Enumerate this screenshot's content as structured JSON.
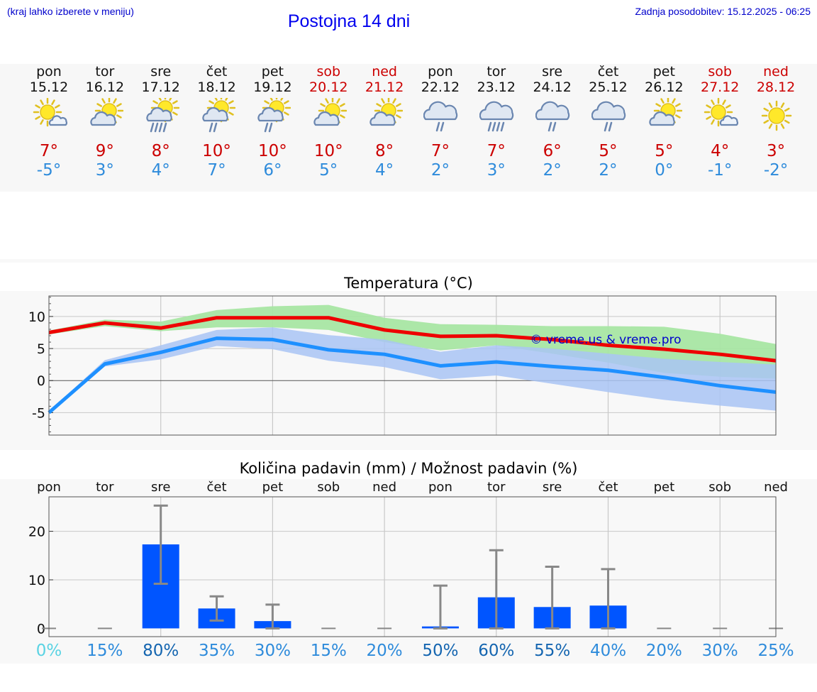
{
  "header": {
    "hint": "(kraj lahko izberete v meniju)",
    "title": "Postojna 14 dni",
    "updated": "Zadnja posodobitev: 15.12.2025 - 06:25"
  },
  "days": [
    {
      "name": "pon",
      "date": "15.12",
      "weekend": false,
      "icon": "sun-cloud-icon",
      "max": "7°",
      "min": "-5°"
    },
    {
      "name": "tor",
      "date": "16.12",
      "weekend": false,
      "icon": "cloud-sun-icon",
      "max": "9°",
      "min": "3°"
    },
    {
      "name": "sre",
      "date": "17.12",
      "weekend": false,
      "icon": "cloud-sun-rain-icon",
      "max": "8°",
      "min": "4°"
    },
    {
      "name": "čet",
      "date": "18.12",
      "weekend": false,
      "icon": "cloud-sun-light-rain-icon",
      "max": "10°",
      "min": "7°"
    },
    {
      "name": "pet",
      "date": "19.12",
      "weekend": false,
      "icon": "cloud-sun-light-rain-icon",
      "max": "10°",
      "min": "6°"
    },
    {
      "name": "sob",
      "date": "20.12",
      "weekend": true,
      "icon": "cloud-sun-icon",
      "max": "10°",
      "min": "5°"
    },
    {
      "name": "ned",
      "date": "21.12",
      "weekend": true,
      "icon": "cloud-sun-icon",
      "max": "8°",
      "min": "4°"
    },
    {
      "name": "pon",
      "date": "22.12",
      "weekend": false,
      "icon": "cloud-light-rain-icon",
      "max": "7°",
      "min": "2°"
    },
    {
      "name": "tor",
      "date": "23.12",
      "weekend": false,
      "icon": "cloud-rain-icon",
      "max": "7°",
      "min": "3°"
    },
    {
      "name": "sre",
      "date": "24.12",
      "weekend": false,
      "icon": "cloud-light-rain-icon",
      "max": "6°",
      "min": "2°"
    },
    {
      "name": "čet",
      "date": "25.12",
      "weekend": false,
      "icon": "cloud-light-rain-icon",
      "max": "5°",
      "min": "2°"
    },
    {
      "name": "pet",
      "date": "26.12",
      "weekend": false,
      "icon": "cloud-sun-icon",
      "max": "5°",
      "min": "0°"
    },
    {
      "name": "sob",
      "date": "27.12",
      "weekend": true,
      "icon": "sun-cloud-icon",
      "max": "4°",
      "min": "-1°"
    },
    {
      "name": "ned",
      "date": "28.12",
      "weekend": true,
      "icon": "sun-icon",
      "max": "3°",
      "min": "-2°"
    }
  ],
  "colors": {
    "max_line": "#ee0000",
    "min_line": "#1e90ff",
    "max_band": "#a8e6a3",
    "min_band": "#a9c4f5",
    "bar": "#0055ff",
    "error": "#888888",
    "watermark": "#0000cc"
  },
  "chart_data": [
    {
      "type": "line",
      "title": "Temperatura (°C)",
      "ylim": [
        -8.5,
        13.2
      ],
      "yticks": [
        -5,
        0,
        5,
        10
      ],
      "watermark": "© vreme.us & vreme.pro",
      "x": [
        0,
        1,
        2,
        3,
        4,
        5,
        6,
        7,
        8,
        9,
        10,
        11,
        12,
        13
      ],
      "series": [
        {
          "name": "max",
          "values": [
            7.5,
            9,
            8.2,
            9.8,
            9.8,
            9.8,
            7.9,
            6.9,
            7,
            6.4,
            5.5,
            4.9,
            4.1,
            3.1
          ],
          "band_low": [
            7.2,
            8.5,
            7.7,
            8.3,
            8.3,
            7.9,
            6.0,
            4.7,
            5.5,
            4.2,
            2.8,
            1.2,
            0.6,
            0.3
          ],
          "band_high": [
            7.8,
            9.5,
            9.2,
            11,
            11.6,
            11.8,
            9.8,
            8.8,
            8.7,
            8.5,
            8.5,
            8.4,
            7.3,
            5.7
          ]
        },
        {
          "name": "min",
          "values": [
            -5,
            2.6,
            4.4,
            6.6,
            6.4,
            4.8,
            4.1,
            2.3,
            2.9,
            2.2,
            1.6,
            0.5,
            -0.8,
            -1.8
          ],
          "band_low": [
            -5.2,
            2.2,
            3.3,
            5.4,
            4.9,
            3.1,
            2.1,
            0.2,
            0.8,
            -0.5,
            -1.8,
            -3,
            -3.9,
            -4.7
          ],
          "band_high": [
            -4.8,
            3.2,
            5.5,
            7.9,
            8.3,
            7.1,
            6.4,
            4.5,
            5.5,
            5.0,
            4.2,
            3.4,
            2.9,
            2.5
          ]
        }
      ]
    },
    {
      "type": "bar",
      "title": "Količina padavin (mm) / Možnost padavin (%)",
      "categories": [
        "pon",
        "tor",
        "sre",
        "čet",
        "pet",
        "sob",
        "ned",
        "pon",
        "tor",
        "sre",
        "čet",
        "pet",
        "sob",
        "ned"
      ],
      "values": [
        0,
        0,
        17.3,
        4.1,
        1.5,
        0,
        0,
        0.4,
        6.4,
        4.4,
        4.7,
        0,
        0,
        0
      ],
      "error_low": [
        0,
        0,
        9.2,
        1.6,
        0,
        0,
        0,
        0,
        0,
        0,
        0,
        0,
        0,
        0
      ],
      "error_high": [
        0,
        0,
        25.3,
        6.6,
        4.9,
        0,
        0,
        8.8,
        16.1,
        12.7,
        12.2,
        0,
        0,
        0
      ],
      "ylim": [
        -1.7,
        27.1
      ],
      "yticks": [
        0,
        10,
        20
      ],
      "probability": [
        "0%",
        "15%",
        "80%",
        "35%",
        "30%",
        "15%",
        "20%",
        "50%",
        "60%",
        "55%",
        "40%",
        "20%",
        "30%",
        "25%"
      ],
      "probability_colors": [
        "#5ad3e3",
        "#2e8bdb",
        "#1465b0",
        "#2e8bdb",
        "#2e8bdb",
        "#2e8bdb",
        "#2e8bdb",
        "#1465b0",
        "#1465b0",
        "#1465b0",
        "#2e8bdb",
        "#2e8bdb",
        "#2e8bdb",
        "#2e8bdb"
      ]
    }
  ]
}
